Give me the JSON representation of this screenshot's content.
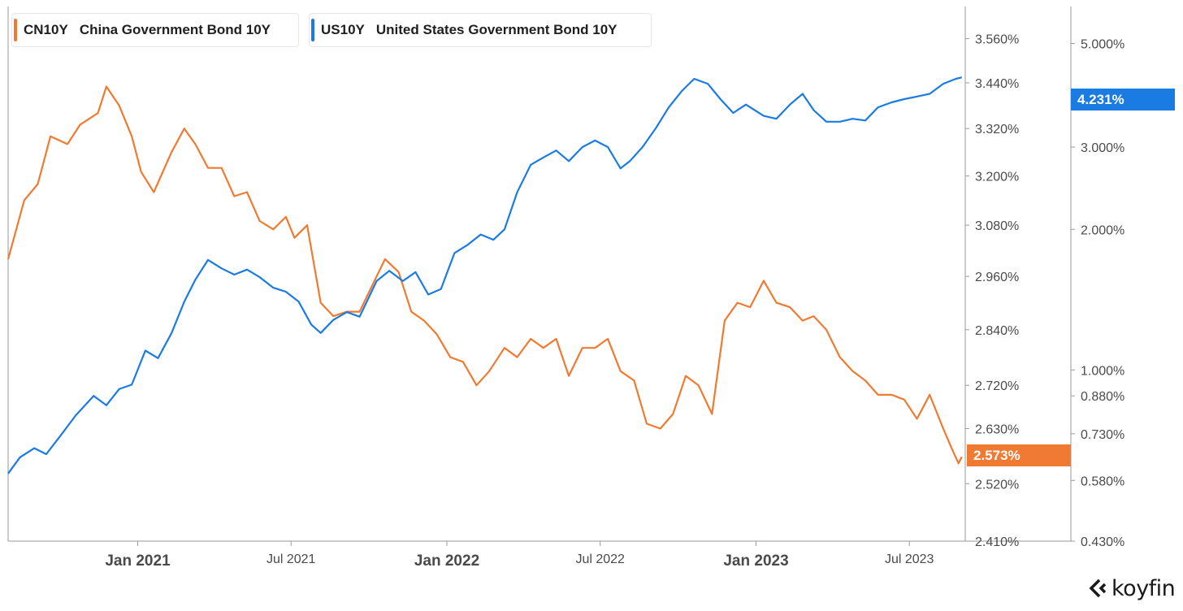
{
  "chart_data": {
    "type": "line",
    "title": "",
    "x_range": [
      "2020-08-01",
      "2023-09-05"
    ],
    "x_ticks": [
      {
        "label": "Jan 2021",
        "date": "2021-01-01",
        "major": true
      },
      {
        "label": "Jul 2021",
        "date": "2021-07-01",
        "major": false
      },
      {
        "label": "Jan 2022",
        "date": "2022-01-01",
        "major": true
      },
      {
        "label": "Jul 2022",
        "date": "2022-07-01",
        "major": false
      },
      {
        "label": "Jan 2023",
        "date": "2023-01-01",
        "major": true
      },
      {
        "label": "Jul 2023",
        "date": "2023-07-01",
        "major": false
      }
    ],
    "axes": {
      "cn": {
        "ticks": [
          "3.560%",
          "3.440%",
          "3.320%",
          "3.200%",
          "3.080%",
          "2.960%",
          "2.840%",
          "2.720%",
          "2.630%",
          "2.520%",
          "2.410%"
        ],
        "tick_values": [
          3.56,
          3.44,
          3.32,
          3.2,
          3.08,
          2.96,
          2.84,
          2.72,
          2.63,
          2.52,
          2.41
        ],
        "range": [
          2.41,
          3.65
        ],
        "scale": "log"
      },
      "us": {
        "ticks": [
          "5.000%",
          "3.000%",
          "2.000%",
          "1.000%",
          "0.880%",
          "0.730%",
          "0.580%",
          "0.430%"
        ],
        "tick_values": [
          5.0,
          3.0,
          2.0,
          1.0,
          0.88,
          0.73,
          0.58,
          0.43
        ],
        "range": [
          0.43,
          6.0
        ],
        "scale": "log"
      }
    },
    "series": [
      {
        "name": "China Government Bond 10Y",
        "ticker": "CN10Y",
        "color": "#f07a31",
        "axis": "cn",
        "last_value": "2.573%",
        "x": [
          "2020-08-01",
          "2020-08-20",
          "2020-09-05",
          "2020-09-20",
          "2020-10-10",
          "2020-10-25",
          "2020-11-15",
          "2020-11-25",
          "2020-12-10",
          "2020-12-25",
          "2021-01-05",
          "2021-01-20",
          "2021-02-10",
          "2021-02-25",
          "2021-03-10",
          "2021-03-25",
          "2021-04-10",
          "2021-04-25",
          "2021-05-10",
          "2021-05-25",
          "2021-06-10",
          "2021-06-25",
          "2021-07-05",
          "2021-07-20",
          "2021-08-05",
          "2021-08-20",
          "2021-09-05",
          "2021-09-20",
          "2021-10-10",
          "2021-10-20",
          "2021-11-05",
          "2021-11-20",
          "2021-12-05",
          "2021-12-20",
          "2022-01-05",
          "2022-01-20",
          "2022-02-05",
          "2022-02-20",
          "2022-03-10",
          "2022-03-25",
          "2022-04-10",
          "2022-04-25",
          "2022-05-10",
          "2022-05-25",
          "2022-06-10",
          "2022-06-25",
          "2022-07-10",
          "2022-07-25",
          "2022-08-10",
          "2022-08-25",
          "2022-09-10",
          "2022-09-25",
          "2022-10-10",
          "2022-10-25",
          "2022-11-10",
          "2022-11-25",
          "2022-12-10",
          "2022-12-25",
          "2023-01-10",
          "2023-01-25",
          "2023-02-10",
          "2023-02-25",
          "2023-03-10",
          "2023-03-25",
          "2023-04-10",
          "2023-04-25",
          "2023-05-10",
          "2023-05-25",
          "2023-06-10",
          "2023-06-25",
          "2023-07-10",
          "2023-07-25",
          "2023-08-10",
          "2023-08-20",
          "2023-08-28",
          "2023-09-01"
        ],
        "values": [
          3.0,
          3.14,
          3.18,
          3.3,
          3.28,
          3.33,
          3.36,
          3.43,
          3.38,
          3.3,
          3.21,
          3.16,
          3.26,
          3.32,
          3.28,
          3.22,
          3.22,
          3.15,
          3.16,
          3.09,
          3.07,
          3.1,
          3.05,
          3.08,
          2.9,
          2.87,
          2.88,
          2.88,
          2.96,
          3.0,
          2.97,
          2.88,
          2.86,
          2.83,
          2.78,
          2.77,
          2.72,
          2.75,
          2.8,
          2.78,
          2.82,
          2.8,
          2.82,
          2.74,
          2.8,
          2.8,
          2.82,
          2.75,
          2.73,
          2.64,
          2.63,
          2.66,
          2.74,
          2.72,
          2.66,
          2.86,
          2.9,
          2.89,
          2.95,
          2.9,
          2.89,
          2.86,
          2.87,
          2.84,
          2.78,
          2.75,
          2.73,
          2.7,
          2.7,
          2.69,
          2.65,
          2.7,
          2.63,
          2.59,
          2.56,
          2.573
        ]
      },
      {
        "name": "United States Government Bond 10Y",
        "ticker": "US10Y",
        "color": "#1a7be2",
        "axis": "us",
        "last_value": "4.231%",
        "x": [
          "2020-08-01",
          "2020-08-15",
          "2020-09-01",
          "2020-09-15",
          "2020-10-01",
          "2020-10-20",
          "2020-11-10",
          "2020-11-25",
          "2020-12-10",
          "2020-12-25",
          "2021-01-10",
          "2021-01-25",
          "2021-02-10",
          "2021-02-25",
          "2021-03-10",
          "2021-03-25",
          "2021-04-10",
          "2021-04-25",
          "2021-05-10",
          "2021-05-25",
          "2021-06-10",
          "2021-06-25",
          "2021-07-10",
          "2021-07-25",
          "2021-08-05",
          "2021-08-20",
          "2021-09-05",
          "2021-09-20",
          "2021-10-10",
          "2021-10-25",
          "2021-11-10",
          "2021-11-25",
          "2021-12-10",
          "2021-12-25",
          "2022-01-10",
          "2022-01-25",
          "2022-02-10",
          "2022-02-25",
          "2022-03-10",
          "2022-03-25",
          "2022-04-10",
          "2022-04-25",
          "2022-05-10",
          "2022-05-25",
          "2022-06-10",
          "2022-06-25",
          "2022-07-10",
          "2022-07-25",
          "2022-08-05",
          "2022-08-20",
          "2022-09-05",
          "2022-09-20",
          "2022-10-05",
          "2022-10-20",
          "2022-11-05",
          "2022-11-20",
          "2022-12-05",
          "2022-12-20",
          "2023-01-10",
          "2023-01-25",
          "2023-02-10",
          "2023-02-25",
          "2023-03-10",
          "2023-03-25",
          "2023-04-10",
          "2023-04-25",
          "2023-05-10",
          "2023-05-25",
          "2023-06-10",
          "2023-06-25",
          "2023-07-10",
          "2023-07-25",
          "2023-08-10",
          "2023-08-25",
          "2023-09-01"
        ],
        "values": [
          0.6,
          0.65,
          0.68,
          0.66,
          0.72,
          0.8,
          0.88,
          0.84,
          0.91,
          0.93,
          1.1,
          1.06,
          1.2,
          1.4,
          1.56,
          1.72,
          1.65,
          1.6,
          1.64,
          1.58,
          1.5,
          1.47,
          1.4,
          1.25,
          1.2,
          1.28,
          1.33,
          1.3,
          1.55,
          1.63,
          1.55,
          1.62,
          1.45,
          1.49,
          1.78,
          1.85,
          1.95,
          1.9,
          2.0,
          2.4,
          2.75,
          2.85,
          2.95,
          2.8,
          3.0,
          3.1,
          3.0,
          2.7,
          2.8,
          3.0,
          3.3,
          3.65,
          3.95,
          4.2,
          4.1,
          3.8,
          3.55,
          3.7,
          3.5,
          3.45,
          3.7,
          3.9,
          3.6,
          3.4,
          3.4,
          3.45,
          3.42,
          3.65,
          3.74,
          3.8,
          3.85,
          3.9,
          4.1,
          4.2,
          4.231
        ]
      }
    ]
  },
  "brand": "koyfin"
}
